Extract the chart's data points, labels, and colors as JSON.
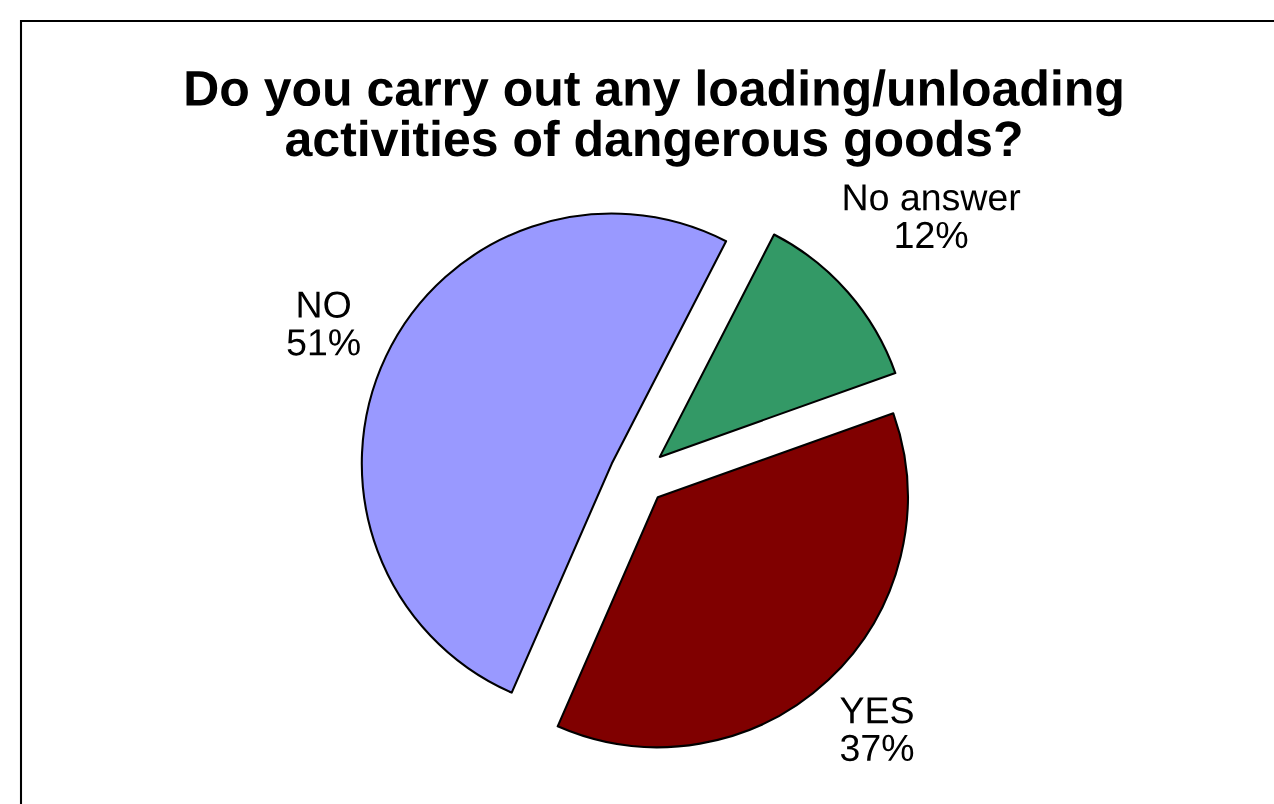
{
  "chart_data": {
    "type": "pie",
    "title": "Do you carry out any loading/unloading\nactivities of dangerous goods?",
    "categories": [
      "YES",
      "NO",
      "No answer"
    ],
    "values": [
      37,
      51,
      12
    ],
    "colors": [
      "#800000",
      "#9999ff",
      "#339966"
    ],
    "value_labels": [
      "37%",
      "51%",
      "12%"
    ]
  }
}
